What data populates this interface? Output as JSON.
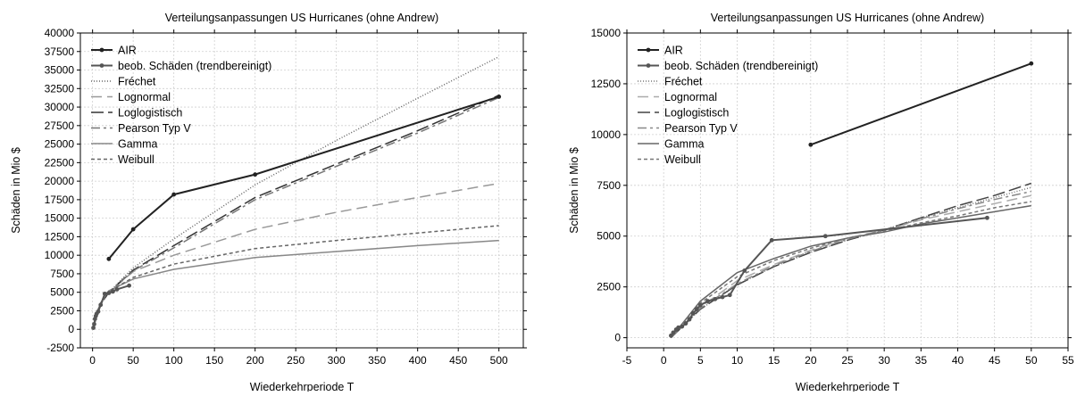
{
  "chart_data": [
    {
      "type": "line",
      "title": "Verteilungsanpassungen US Hurricanes (ohne Andrew)",
      "xlabel": "Wiederkehrperiode T",
      "ylabel": "Schäden in Mio $",
      "xlim": [
        -15,
        530
      ],
      "ylim": [
        -2500,
        40000
      ],
      "xticks": [
        0,
        50,
        100,
        150,
        200,
        250,
        300,
        350,
        400,
        450,
        500
      ],
      "yticks": [
        -2500,
        0,
        2500,
        5000,
        7500,
        10000,
        12500,
        15000,
        17500,
        20000,
        22500,
        25000,
        27500,
        30000,
        32500,
        35000,
        37500,
        40000
      ],
      "grid": true,
      "legend_position": "top-left",
      "series": [
        {
          "name": "AIR",
          "color": "#222222",
          "markers": true,
          "x": [
            20,
            50,
            100,
            200,
            500
          ],
          "y": [
            9500,
            13500,
            18200,
            20900,
            31400
          ]
        },
        {
          "name": "beob. Schäden (trendbereinigt)",
          "color": "#555555",
          "markers": true,
          "x": [
            1,
            2,
            3,
            4,
            5,
            7,
            10,
            15,
            20,
            25,
            30,
            45
          ],
          "y": [
            200,
            700,
            1400,
            1800,
            2100,
            2400,
            3300,
            4800,
            4900,
            5100,
            5400,
            5900
          ]
        },
        {
          "name": "Fréchet",
          "color": "#666666",
          "dash": "1,2",
          "x": [
            1,
            5,
            10,
            20,
            50,
            100,
            200,
            300,
            400,
            500
          ],
          "y": [
            0,
            2000,
            3500,
            5000,
            8300,
            12200,
            19500,
            25500,
            31200,
            36800
          ]
        },
        {
          "name": "Lognormal",
          "color": "#999999",
          "dash": "12,6",
          "x": [
            1,
            5,
            10,
            20,
            50,
            100,
            200,
            300,
            400,
            500
          ],
          "y": [
            0,
            2000,
            3300,
            5000,
            7800,
            10000,
            13500,
            15800,
            17800,
            19700
          ]
        },
        {
          "name": "Loglogistisch",
          "color": "#333333",
          "dash": "14,5",
          "x": [
            1,
            5,
            10,
            20,
            50,
            100,
            200,
            300,
            400,
            500
          ],
          "y": [
            0,
            2000,
            3400,
            5000,
            8000,
            11300,
            17800,
            22300,
            26800,
            31600
          ]
        },
        {
          "name": "Pearson Typ V",
          "color": "#777777",
          "dash": "10,4,3,4",
          "x": [
            1,
            5,
            10,
            20,
            50,
            100,
            200,
            300,
            400,
            500
          ],
          "y": [
            0,
            2000,
            3400,
            5000,
            7900,
            11000,
            17500,
            22000,
            26500,
            31300
          ]
        },
        {
          "name": "Gamma",
          "color": "#888888",
          "x": [
            1,
            5,
            10,
            20,
            50,
            100,
            200,
            300,
            400,
            500
          ],
          "y": [
            0,
            2200,
            3600,
            5200,
            6800,
            8100,
            9700,
            10500,
            11300,
            12000
          ]
        },
        {
          "name": "Weibull",
          "color": "#666666",
          "dash": "4,3",
          "x": [
            1,
            5,
            10,
            20,
            50,
            100,
            200,
            300,
            400,
            500
          ],
          "y": [
            0,
            2100,
            3500,
            5100,
            7000,
            8800,
            10900,
            12000,
            13000,
            14000
          ]
        }
      ]
    },
    {
      "type": "line",
      "title": "Verteilungsanpassungen US Hurricanes (ohne Andrew)",
      "xlabel": "Wiederkehrperiode T",
      "ylabel": "Schäden in Mio $",
      "xlim": [
        -5,
        55
      ],
      "ylim": [
        -500,
        15000
      ],
      "xticks": [
        -5,
        0,
        5,
        10,
        15,
        20,
        25,
        30,
        35,
        40,
        45,
        50,
        55
      ],
      "yticks": [
        0,
        2500,
        5000,
        7500,
        10000,
        12500,
        15000
      ],
      "grid": true,
      "legend_position": "top-left",
      "series": [
        {
          "name": "AIR",
          "color": "#222222",
          "markers": true,
          "x": [
            20,
            50
          ],
          "y": [
            9500,
            13500
          ]
        },
        {
          "name": "beob. Schäden (trendbereinigt)",
          "color": "#555555",
          "markers": true,
          "x": [
            1,
            1.3,
            1.7,
            2,
            2.5,
            3,
            3.5,
            4,
            4.5,
            5,
            6,
            7,
            8,
            9,
            11,
            14.7,
            22,
            44
          ],
          "y": [
            100,
            250,
            400,
            500,
            550,
            700,
            900,
            1200,
            1400,
            1600,
            1800,
            1900,
            2000,
            2100,
            3300,
            4800,
            5000,
            5900
          ]
        },
        {
          "name": "Fréchet",
          "color": "#777777",
          "dash": "1,2",
          "x": [
            1,
            5,
            10,
            15,
            20,
            25,
            30,
            35,
            40,
            45,
            50
          ],
          "y": [
            0,
            1400,
            2600,
            3500,
            4200,
            4800,
            5300,
            5900,
            6400,
            6900,
            7400
          ]
        },
        {
          "name": "Lognormal",
          "color": "#aaaaaa",
          "dash": "12,6",
          "x": [
            1,
            5,
            10,
            15,
            20,
            25,
            30,
            35,
            40,
            45,
            50
          ],
          "y": [
            0,
            1500,
            2800,
            3600,
            4300,
            4900,
            5300,
            5800,
            6200,
            6600,
            7000
          ]
        },
        {
          "name": "Loglogistisch",
          "color": "#444444",
          "dash": "14,5",
          "x": [
            1,
            5,
            10,
            15,
            20,
            25,
            30,
            35,
            40,
            45,
            50
          ],
          "y": [
            0,
            1400,
            2600,
            3500,
            4200,
            4800,
            5300,
            5900,
            6500,
            7000,
            7600
          ]
        },
        {
          "name": "Pearson Typ V",
          "color": "#888888",
          "dash": "10,4,3,4",
          "x": [
            1,
            5,
            10,
            15,
            20,
            25,
            30,
            35,
            40,
            45,
            50
          ],
          "y": [
            0,
            1450,
            2650,
            3550,
            4250,
            4850,
            5300,
            5850,
            6350,
            6800,
            7200
          ]
        },
        {
          "name": "Gamma",
          "color": "#666666",
          "x": [
            1,
            5,
            10,
            15,
            20,
            25,
            30,
            35,
            40,
            45,
            50
          ],
          "y": [
            0,
            1800,
            3200,
            3900,
            4500,
            4900,
            5200,
            5600,
            5900,
            6200,
            6500
          ]
        },
        {
          "name": "Weibull",
          "color": "#777777",
          "dash": "4,3",
          "x": [
            1,
            5,
            10,
            15,
            20,
            25,
            30,
            35,
            40,
            45,
            50
          ],
          "y": [
            0,
            1700,
            3000,
            3800,
            4400,
            4900,
            5250,
            5650,
            6000,
            6400,
            6700
          ]
        }
      ]
    }
  ]
}
